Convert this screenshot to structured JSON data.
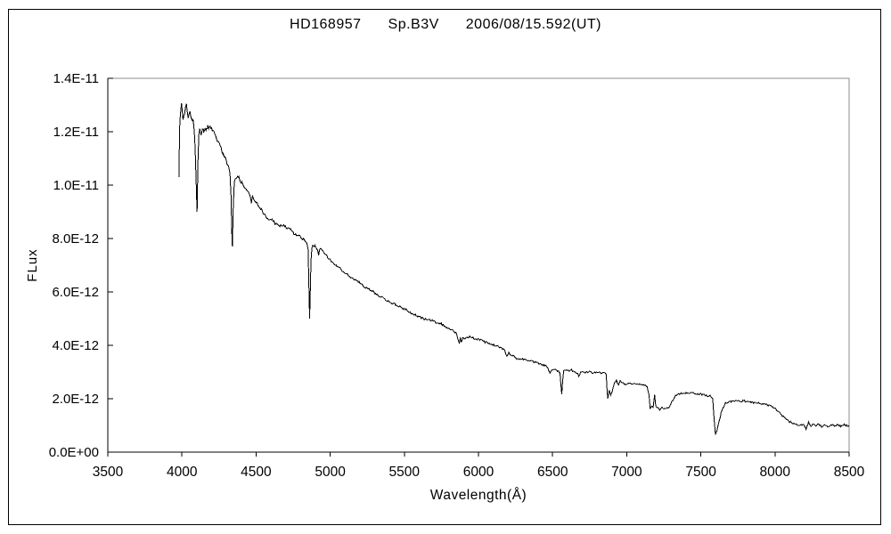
{
  "figure": {
    "title": {
      "object_name": "HD168957",
      "spectral_type": "Sp.B3V",
      "date_ut": "2006/08/15.592(UT)"
    },
    "y_axis": {
      "label": "FLux",
      "tick_labels": [
        "0.0E+00",
        "2.0E-12",
        "4.0E-12",
        "6.0E-12",
        "8.0E-12",
        "1.0E-11",
        "1.2E-11",
        "1.4E-11"
      ],
      "tick_values_e12": [
        0,
        2,
        4,
        6,
        8,
        10,
        12,
        14
      ]
    },
    "x_axis": {
      "label": "Wavelength(Å)",
      "tick_labels": [
        "3500",
        "4000",
        "4500",
        "5000",
        "5500",
        "6000",
        "6500",
        "7000",
        "7500",
        "8000",
        "8500"
      ],
      "tick_values": [
        3500,
        4000,
        4500,
        5000,
        5500,
        6000,
        6500,
        7000,
        7500,
        8000,
        8500
      ]
    },
    "colors": {
      "background": "#ffffff",
      "outer_frame": "#000000",
      "plot_border": "#8c8c8c",
      "axis": "#000000",
      "curve": "#000000",
      "text": "#000000"
    }
  },
  "chart_data": {
    "type": "line",
    "title": "HD168957 Sp.B3V 2006/08/15.592(UT)",
    "xlabel": "Wavelength(Å)",
    "ylabel": "FLux",
    "xlim": [
      3500,
      8500
    ],
    "ylim": [
      0,
      1.4e-11
    ],
    "grid": false,
    "legend": false,
    "flux_unit_scale": 1e-12,
    "noise": {
      "base_amp_e12": 0.035,
      "amp_per_flux": 0.004,
      "sample_step_A": 6,
      "steep_slope_cutoff": 0.05
    },
    "points_lambda_flux_e12": [
      [
        3981,
        10.3
      ],
      [
        3983,
        11.9
      ],
      [
        3987,
        12.45
      ],
      [
        3992,
        12.8
      ],
      [
        3997,
        13.0
      ],
      [
        4002,
        12.8
      ],
      [
        4007,
        12.45
      ],
      [
        4012,
        12.55
      ],
      [
        4018,
        12.7
      ],
      [
        4024,
        12.95
      ],
      [
        4030,
        13.0
      ],
      [
        4036,
        12.75
      ],
      [
        4042,
        12.45
      ],
      [
        4048,
        12.65
      ],
      [
        4054,
        12.7
      ],
      [
        4061,
        12.5
      ],
      [
        4068,
        12.42
      ],
      [
        4076,
        12.45
      ],
      [
        4083,
        12.05
      ],
      [
        4089,
        11.4
      ],
      [
        4095,
        10.3
      ],
      [
        4102,
        9.0
      ],
      [
        4108,
        10.9
      ],
      [
        4114,
        11.95
      ],
      [
        4121,
        12.1
      ],
      [
        4129,
        11.92
      ],
      [
        4138,
        12.08
      ],
      [
        4147,
        12.02
      ],
      [
        4156,
        12.15
      ],
      [
        4165,
        12.05
      ],
      [
        4174,
        12.18
      ],
      [
        4184,
        12.12
      ],
      [
        4194,
        12.18
      ],
      [
        4205,
        12.02
      ],
      [
        4216,
        11.95
      ],
      [
        4228,
        11.82
      ],
      [
        4240,
        11.7
      ],
      [
        4252,
        11.55
      ],
      [
        4264,
        11.38
      ],
      [
        4277,
        11.2
      ],
      [
        4290,
        11.02
      ],
      [
        4303,
        10.85
      ],
      [
        4314,
        10.68
      ],
      [
        4324,
        10.45
      ],
      [
        4331,
        9.6
      ],
      [
        4336,
        8.3
      ],
      [
        4340,
        7.7
      ],
      [
        4346,
        9.2
      ],
      [
        4353,
        10.1
      ],
      [
        4360,
        10.28
      ],
      [
        4368,
        10.22
      ],
      [
        4376,
        10.35
      ],
      [
        4384,
        10.28
      ],
      [
        4394,
        10.15
      ],
      [
        4404,
        10.08
      ],
      [
        4415,
        10.0
      ],
      [
        4427,
        9.88
      ],
      [
        4439,
        9.77
      ],
      [
        4451,
        9.7
      ],
      [
        4461,
        9.6
      ],
      [
        4468,
        9.33
      ],
      [
        4476,
        9.56
      ],
      [
        4488,
        9.47
      ],
      [
        4501,
        9.38
      ],
      [
        4515,
        9.27
      ],
      [
        4531,
        9.12
      ],
      [
        4548,
        8.97
      ],
      [
        4566,
        8.82
      ],
      [
        4584,
        8.72
      ],
      [
        4602,
        8.72
      ],
      [
        4622,
        8.6
      ],
      [
        4642,
        8.52
      ],
      [
        4660,
        8.45
      ],
      [
        4680,
        8.5
      ],
      [
        4698,
        8.48
      ],
      [
        4710,
        8.38
      ],
      [
        4722,
        8.42
      ],
      [
        4738,
        8.3
      ],
      [
        4755,
        8.2
      ],
      [
        4772,
        8.15
      ],
      [
        4790,
        8.08
      ],
      [
        4808,
        8.0
      ],
      [
        4826,
        7.95
      ],
      [
        4843,
        7.85
      ],
      [
        4851,
        7.6
      ],
      [
        4856,
        6.4
      ],
      [
        4861,
        5.0
      ],
      [
        4866,
        6.1
      ],
      [
        4871,
        7.2
      ],
      [
        4877,
        7.7
      ],
      [
        4884,
        7.78
      ],
      [
        4892,
        7.73
      ],
      [
        4901,
        7.7
      ],
      [
        4910,
        7.65
      ],
      [
        4916,
        7.58
      ],
      [
        4922,
        7.4
      ],
      [
        4929,
        7.55
      ],
      [
        4938,
        7.6
      ],
      [
        4950,
        7.52
      ],
      [
        4965,
        7.42
      ],
      [
        4982,
        7.3
      ],
      [
        5000,
        7.2
      ],
      [
        5022,
        7.08
      ],
      [
        5045,
        6.97
      ],
      [
        5070,
        6.86
      ],
      [
        5098,
        6.72
      ],
      [
        5128,
        6.6
      ],
      [
        5160,
        6.48
      ],
      [
        5195,
        6.35
      ],
      [
        5232,
        6.2
      ],
      [
        5270,
        6.07
      ],
      [
        5310,
        5.92
      ],
      [
        5350,
        5.8
      ],
      [
        5395,
        5.65
      ],
      [
        5440,
        5.52
      ],
      [
        5485,
        5.4
      ],
      [
        5510,
        5.33
      ],
      [
        5550,
        5.2
      ],
      [
        5590,
        5.08
      ],
      [
        5630,
        5.0
      ],
      [
        5665,
        4.95
      ],
      [
        5700,
        4.9
      ],
      [
        5750,
        4.8
      ],
      [
        5798,
        4.63
      ],
      [
        5835,
        4.52
      ],
      [
        5852,
        4.44
      ],
      [
        5864,
        4.2
      ],
      [
        5871,
        4.07
      ],
      [
        5878,
        4.25
      ],
      [
        5885,
        4.1
      ],
      [
        5893,
        4.3
      ],
      [
        5908,
        4.27
      ],
      [
        5923,
        4.3
      ],
      [
        5940,
        4.33
      ],
      [
        5962,
        4.28
      ],
      [
        5990,
        4.23
      ],
      [
        6020,
        4.18
      ],
      [
        6055,
        4.1
      ],
      [
        6090,
        4.03
      ],
      [
        6125,
        3.97
      ],
      [
        6155,
        3.9
      ],
      [
        6178,
        3.8
      ],
      [
        6192,
        3.58
      ],
      [
        6205,
        3.72
      ],
      [
        6228,
        3.62
      ],
      [
        6260,
        3.5
      ],
      [
        6298,
        3.48
      ],
      [
        6338,
        3.44
      ],
      [
        6378,
        3.37
      ],
      [
        6418,
        3.3
      ],
      [
        6452,
        3.23
      ],
      [
        6468,
        3.15
      ],
      [
        6482,
        2.95
      ],
      [
        6496,
        3.1
      ],
      [
        6514,
        3.1
      ],
      [
        6534,
        3.05
      ],
      [
        6550,
        2.97
      ],
      [
        6557,
        2.45
      ],
      [
        6562,
        2.17
      ],
      [
        6568,
        2.7
      ],
      [
        6575,
        3.05
      ],
      [
        6590,
        3.1
      ],
      [
        6608,
        3.05
      ],
      [
        6628,
        3.08
      ],
      [
        6648,
        3.0
      ],
      [
        6670,
        2.97
      ],
      [
        6678,
        2.83
      ],
      [
        6688,
        2.98
      ],
      [
        6706,
        3.02
      ],
      [
        6726,
        2.98
      ],
      [
        6748,
        3.0
      ],
      [
        6772,
        2.97
      ],
      [
        6800,
        3.0
      ],
      [
        6828,
        2.97
      ],
      [
        6852,
        2.95
      ],
      [
        6862,
        2.9
      ],
      [
        6867,
        2.35
      ],
      [
        6872,
        2.0
      ],
      [
        6882,
        2.35
      ],
      [
        6892,
        2.15
      ],
      [
        6902,
        2.28
      ],
      [
        6916,
        2.55
      ],
      [
        6930,
        2.7
      ],
      [
        6944,
        2.5
      ],
      [
        6956,
        2.65
      ],
      [
        6972,
        2.6
      ],
      [
        6992,
        2.55
      ],
      [
        7014,
        2.6
      ],
      [
        7038,
        2.55
      ],
      [
        7062,
        2.58
      ],
      [
        7086,
        2.55
      ],
      [
        7112,
        2.52
      ],
      [
        7138,
        2.45
      ],
      [
        7150,
        2.15
      ],
      [
        7158,
        1.62
      ],
      [
        7170,
        1.72
      ],
      [
        7178,
        1.65
      ],
      [
        7188,
        2.15
      ],
      [
        7196,
        1.7
      ],
      [
        7208,
        1.65
      ],
      [
        7222,
        1.6
      ],
      [
        7238,
        1.67
      ],
      [
        7255,
        1.63
      ],
      [
        7272,
        1.66
      ],
      [
        7292,
        1.72
      ],
      [
        7310,
        1.95
      ],
      [
        7328,
        2.1
      ],
      [
        7350,
        2.16
      ],
      [
        7374,
        2.2
      ],
      [
        7400,
        2.22
      ],
      [
        7428,
        2.23
      ],
      [
        7456,
        2.2
      ],
      [
        7484,
        2.18
      ],
      [
        7512,
        2.15
      ],
      [
        7540,
        2.12
      ],
      [
        7562,
        2.1
      ],
      [
        7580,
        2.0
      ],
      [
        7590,
        1.2
      ],
      [
        7598,
        0.67
      ],
      [
        7608,
        0.8
      ],
      [
        7620,
        1.1
      ],
      [
        7636,
        1.45
      ],
      [
        7650,
        1.68
      ],
      [
        7666,
        1.83
      ],
      [
        7684,
        1.88
      ],
      [
        7704,
        1.9
      ],
      [
        7728,
        1.92
      ],
      [
        7755,
        1.9
      ],
      [
        7782,
        1.92
      ],
      [
        7810,
        1.9
      ],
      [
        7838,
        1.88
      ],
      [
        7866,
        1.85
      ],
      [
        7894,
        1.83
      ],
      [
        7922,
        1.8
      ],
      [
        7948,
        1.77
      ],
      [
        7972,
        1.72
      ],
      [
        7996,
        1.65
      ],
      [
        8020,
        1.52
      ],
      [
        8044,
        1.4
      ],
      [
        8068,
        1.27
      ],
      [
        8092,
        1.16
      ],
      [
        8116,
        1.09
      ],
      [
        8140,
        1.04
      ],
      [
        8164,
        0.99
      ],
      [
        8188,
        1.05
      ],
      [
        8210,
        0.85
      ],
      [
        8226,
        1.1
      ],
      [
        8242,
        0.95
      ],
      [
        8258,
        1.04
      ],
      [
        8276,
        0.99
      ],
      [
        8295,
        1.05
      ],
      [
        8315,
        0.96
      ],
      [
        8335,
        1.03
      ],
      [
        8356,
        0.97
      ],
      [
        8378,
        1.02
      ],
      [
        8400,
        0.98
      ],
      [
        8422,
        1.03
      ],
      [
        8444,
        0.97
      ],
      [
        8466,
        1.02
      ],
      [
        8488,
        0.98
      ],
      [
        8500,
        1.0
      ]
    ]
  }
}
